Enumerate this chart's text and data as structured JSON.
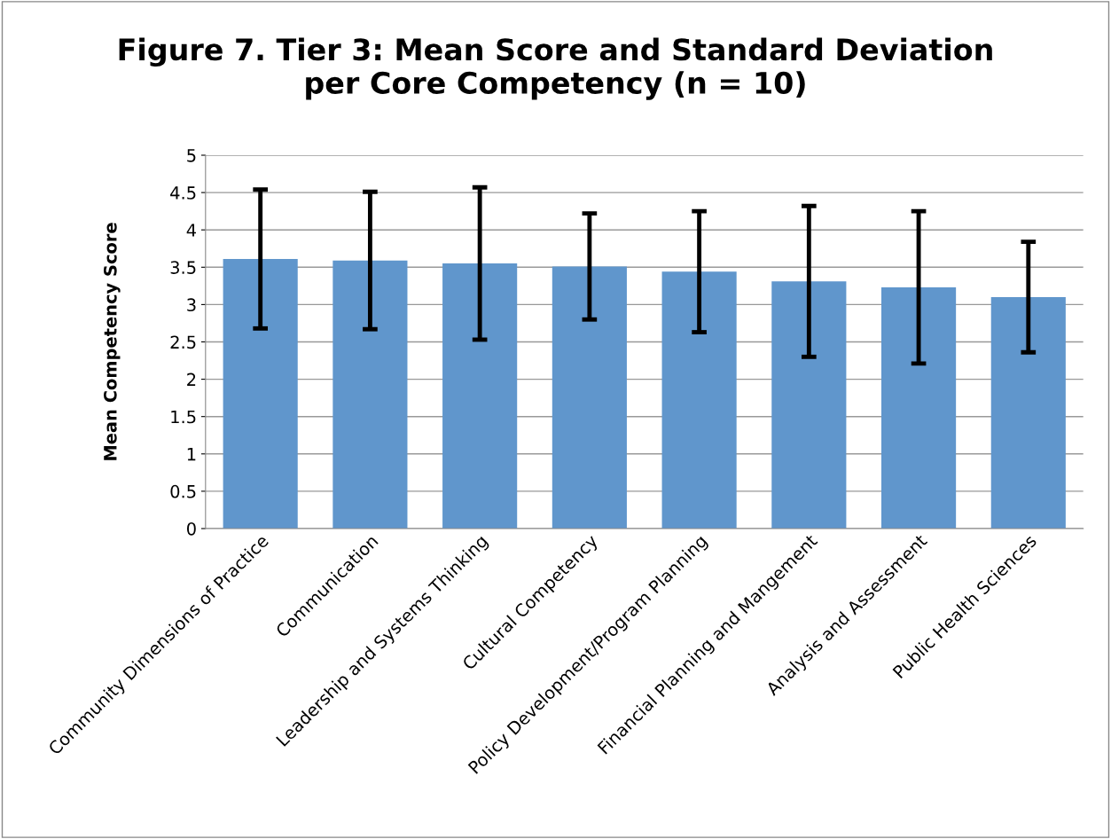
{
  "chart_data": {
    "type": "bar",
    "title": "Figure 7. Tier 3: Mean Score and Standard Deviation\nper Core Competency (n = 10)",
    "ylabel": "Mean Competency Score",
    "categories": [
      "Community Dimensions of Practice",
      "Communication",
      "Leadership and Systems Thinking",
      "Cultural Competency",
      "Policy Development/Program Planning",
      "Financial Planning and Mangement",
      "Analysis and Assessment",
      "Public Health Sciences"
    ],
    "series": [
      {
        "color": "#6096cc",
        "values": [
          3.61,
          3.59,
          3.55,
          3.51,
          3.44,
          3.31,
          3.23,
          3.1
        ],
        "errors": [
          0.93,
          0.92,
          1.02,
          0.71,
          0.81,
          1.01,
          1.02,
          0.74
        ]
      }
    ],
    "ylim": [
      0,
      5
    ],
    "yticks": [
      0,
      0.5,
      1,
      1.5,
      2,
      2.5,
      3,
      3.5,
      4,
      4.5,
      5
    ],
    "grid": "y",
    "legend": false
  }
}
